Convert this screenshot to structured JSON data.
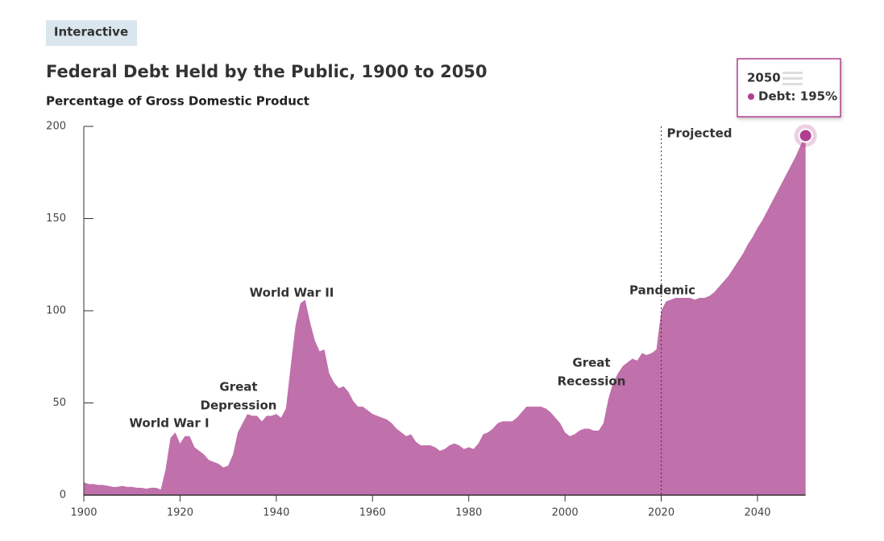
{
  "badge": "Interactive",
  "chart_data": {
    "type": "area",
    "title": "Federal Debt Held by the Public, 1900 to 2050",
    "subtitle": "Percentage of Gross Domestic Product",
    "x": [
      1900,
      1901,
      1902,
      1903,
      1904,
      1905,
      1906,
      1907,
      1908,
      1909,
      1910,
      1911,
      1912,
      1913,
      1914,
      1915,
      1916,
      1917,
      1918,
      1919,
      1920,
      1921,
      1922,
      1923,
      1924,
      1925,
      1926,
      1927,
      1928,
      1929,
      1930,
      1931,
      1932,
      1933,
      1934,
      1935,
      1936,
      1937,
      1938,
      1939,
      1940,
      1941,
      1942,
      1943,
      1944,
      1945,
      1946,
      1947,
      1948,
      1949,
      1950,
      1951,
      1952,
      1953,
      1954,
      1955,
      1956,
      1957,
      1958,
      1959,
      1960,
      1961,
      1962,
      1963,
      1964,
      1965,
      1966,
      1967,
      1968,
      1969,
      1970,
      1971,
      1972,
      1973,
      1974,
      1975,
      1976,
      1977,
      1978,
      1979,
      1980,
      1981,
      1982,
      1983,
      1984,
      1985,
      1986,
      1987,
      1988,
      1989,
      1990,
      1991,
      1992,
      1993,
      1994,
      1995,
      1996,
      1997,
      1998,
      1999,
      2000,
      2001,
      2002,
      2003,
      2004,
      2005,
      2006,
      2007,
      2008,
      2009,
      2010,
      2011,
      2012,
      2013,
      2014,
      2015,
      2016,
      2017,
      2018,
      2019,
      2020,
      2021,
      2022,
      2023,
      2024,
      2025,
      2026,
      2027,
      2028,
      2029,
      2030,
      2031,
      2032,
      2033,
      2034,
      2035,
      2036,
      2037,
      2038,
      2039,
      2040,
      2041,
      2042,
      2043,
      2044,
      2045,
      2046,
      2047,
      2048,
      2049,
      2050
    ],
    "series": [
      {
        "name": "Debt",
        "color": "#c070ab",
        "marker_color": "#b0408f",
        "values": [
          7,
          6,
          6,
          5.5,
          5.5,
          5,
          4.5,
          4.5,
          5,
          4.5,
          4.5,
          4,
          4,
          3.5,
          4,
          4,
          3,
          14,
          31,
          34,
          28,
          32,
          32,
          26,
          24,
          22,
          19,
          18,
          17,
          15,
          16,
          22,
          34,
          39,
          44,
          43,
          43,
          40,
          43,
          43,
          44,
          42,
          47,
          70,
          92,
          104,
          106,
          94,
          84,
          78,
          79,
          66,
          61,
          58,
          59,
          56,
          51,
          48,
          48,
          46,
          44,
          43,
          42,
          41,
          39,
          36,
          34,
          32,
          33,
          29,
          27,
          27,
          27,
          26,
          24,
          25,
          27,
          28,
          27,
          25,
          26,
          25,
          28,
          33,
          34,
          36,
          39,
          40,
          40,
          40,
          42,
          45,
          48,
          48,
          48,
          48,
          47,
          45,
          42,
          39,
          34,
          32,
          33,
          35,
          36,
          36,
          35,
          35,
          39,
          52,
          61,
          66,
          70,
          72,
          74,
          73,
          77,
          76,
          77,
          79,
          100,
          105,
          106,
          107,
          107,
          107,
          107,
          106,
          107,
          107,
          108,
          110,
          113,
          116,
          119,
          123,
          127,
          131,
          136,
          140,
          145,
          149,
          154,
          159,
          164,
          169,
          174,
          179,
          184,
          190,
          195
        ]
      }
    ],
    "xlim": [
      1900,
      2050
    ],
    "xticks": [
      1900,
      1920,
      1940,
      1960,
      1980,
      2000,
      2020,
      2040
    ],
    "ylim": [
      0,
      200
    ],
    "yticks": [
      0,
      50,
      100,
      150,
      200
    ],
    "projection_start": 2020,
    "projection_label": "Projected",
    "annotations": [
      [
        "World War I"
      ],
      [
        "Great",
        "Depression"
      ],
      [
        "World War II"
      ],
      [
        "Great",
        "Recession"
      ],
      [
        "Pandemic"
      ]
    ],
    "tooltip": {
      "title": "2050",
      "text": "Debt: 195%"
    }
  }
}
